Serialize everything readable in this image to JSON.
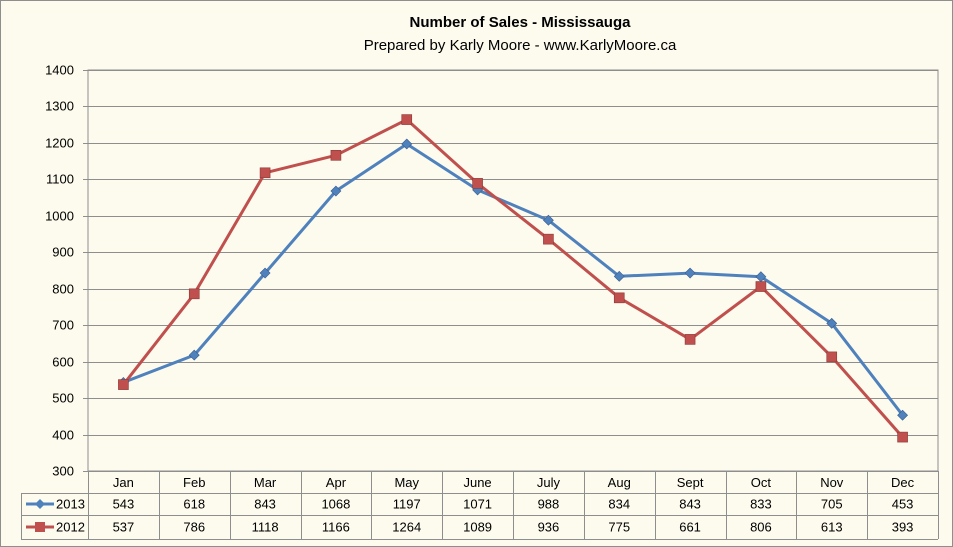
{
  "chart_data": {
    "type": "line",
    "title": "Number of Sales - Mississauga",
    "subtitle": "Prepared by Karly Moore - www.KarlyMoore.ca",
    "xlabel": "",
    "ylabel": "",
    "ylim": [
      300,
      1400
    ],
    "ytick_step": 100,
    "grid": true,
    "legend": "data-table-left",
    "categories": [
      "Jan",
      "Feb",
      "Mar",
      "Apr",
      "May",
      "June",
      "July",
      "Aug",
      "Sept",
      "Oct",
      "Nov",
      "Dec"
    ],
    "series": [
      {
        "name": "2013",
        "color": "#4f81bd",
        "marker": "diamond",
        "values": [
          543,
          618,
          843,
          1068,
          1197,
          1071,
          988,
          834,
          843,
          833,
          705,
          453
        ]
      },
      {
        "name": "2012",
        "color": "#c0504d",
        "marker": "square",
        "values": [
          537,
          786,
          1118,
          1166,
          1264,
          1089,
          936,
          775,
          661,
          806,
          613,
          393
        ]
      }
    ]
  }
}
